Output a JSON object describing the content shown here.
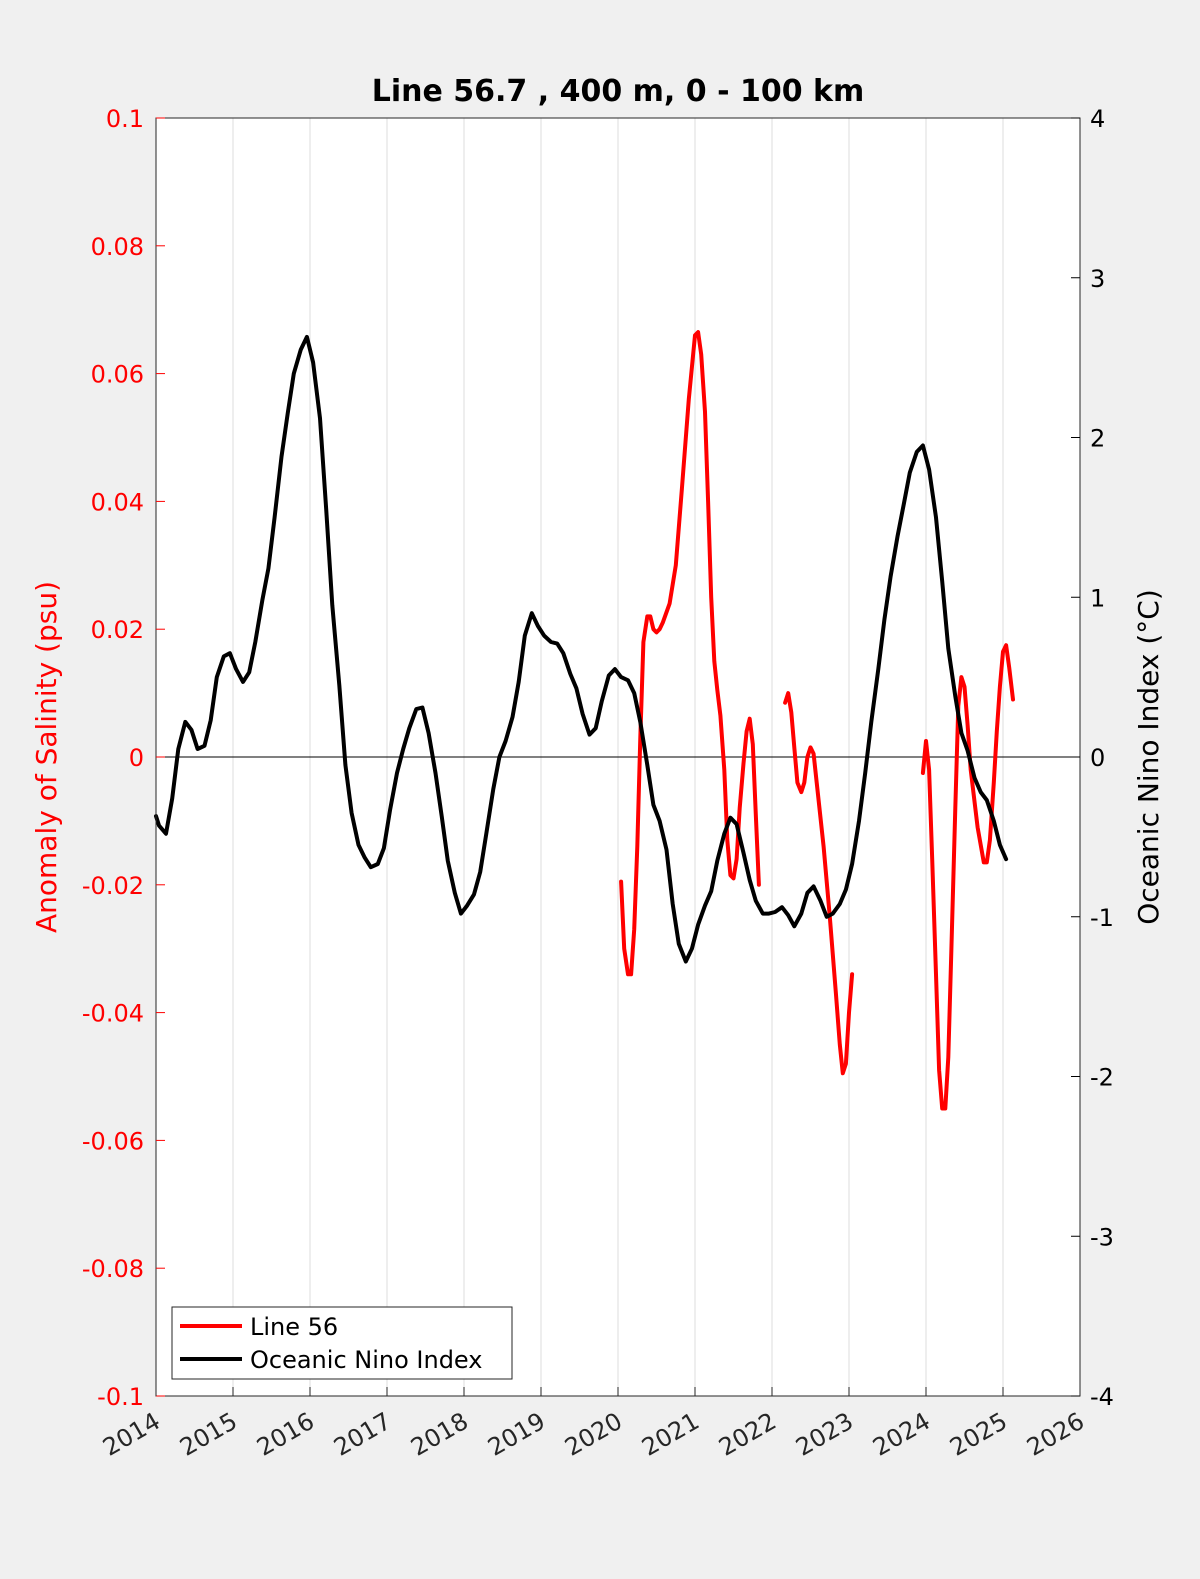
{
  "chart_data": {
    "type": "line",
    "title": "Line 56.7 , 400 m, 0 - 100 km",
    "xlabel": "",
    "ylabel_left": "Anomaly of Salinity (psu)",
    "ylabel_right": "Oceanic Nino Index (°C)",
    "xlim": [
      2014,
      2026
    ],
    "ylim_left": [
      -0.1,
      0.1
    ],
    "ylim_right": [
      -4,
      4
    ],
    "x_ticks": [
      "2014",
      "2015",
      "2016",
      "2017",
      "2018",
      "2019",
      "2020",
      "2021",
      "2022",
      "2023",
      "2024",
      "2025",
      "2026"
    ],
    "y_ticks_left": [
      "-0.1",
      "-0.08",
      "-0.06",
      "-0.04",
      "-0.02",
      "0",
      "0.02",
      "0.04",
      "0.06",
      "0.08",
      "0.1"
    ],
    "y_ticks_right": [
      "-4",
      "-3",
      "-2",
      "-1",
      "0",
      "1",
      "2",
      "3",
      "4"
    ],
    "grid": "vertical",
    "legend_position": "bottom-left",
    "colors": {
      "salinity": "#ff0000",
      "oni": "#000000",
      "left_axis": "#ff0000",
      "right_axis": "#000000"
    },
    "series": [
      {
        "name": "Line 56",
        "axis": "left",
        "segments": [
          [
            [
              2020.04,
              -0.0195
            ],
            [
              2020.08,
              -0.03
            ],
            [
              2020.13,
              -0.034
            ],
            [
              2020.17,
              -0.034
            ],
            [
              2020.21,
              -0.027
            ],
            [
              2020.25,
              -0.014
            ],
            [
              2020.29,
              0.003
            ],
            [
              2020.33,
              0.018
            ],
            [
              2020.38,
              0.022
            ],
            [
              2020.42,
              0.022
            ],
            [
              2020.46,
              0.02
            ],
            [
              2020.5,
              0.0195
            ],
            [
              2020.54,
              0.02
            ],
            [
              2020.58,
              0.021
            ],
            [
              2020.67,
              0.024
            ],
            [
              2020.75,
              0.03
            ],
            [
              2020.83,
              0.042
            ],
            [
              2020.92,
              0.056
            ],
            [
              2021.0,
              0.066
            ],
            [
              2021.04,
              0.0665
            ],
            [
              2021.08,
              0.063
            ],
            [
              2021.13,
              0.054
            ],
            [
              2021.17,
              0.04
            ],
            [
              2021.21,
              0.025
            ],
            [
              2021.25,
              0.015
            ],
            [
              2021.29,
              0.0105
            ],
            [
              2021.33,
              0.0065
            ],
            [
              2021.38,
              -0.002
            ],
            [
              2021.42,
              -0.013
            ],
            [
              2021.46,
              -0.0185
            ],
            [
              2021.5,
              -0.019
            ],
            [
              2021.54,
              -0.016
            ],
            [
              2021.58,
              -0.008
            ],
            [
              2021.63,
              -0.001
            ],
            [
              2021.67,
              0.004
            ],
            [
              2021.71,
              0.006
            ],
            [
              2021.75,
              0.002
            ],
            [
              2021.79,
              -0.009
            ],
            [
              2021.83,
              -0.02
            ]
          ],
          [
            [
              2022.17,
              0.0085
            ],
            [
              2022.21,
              0.01
            ],
            [
              2022.25,
              0.007
            ],
            [
              2022.29,
              0.0015
            ],
            [
              2022.33,
              -0.004
            ],
            [
              2022.38,
              -0.0055
            ],
            [
              2022.42,
              -0.004
            ],
            [
              2022.46,
              0.0
            ],
            [
              2022.5,
              0.0015
            ],
            [
              2022.54,
              0.0005
            ],
            [
              2022.58,
              -0.004
            ],
            [
              2022.67,
              -0.014
            ],
            [
              2022.75,
              -0.025
            ],
            [
              2022.83,
              -0.037
            ],
            [
              2022.88,
              -0.045
            ],
            [
              2022.92,
              -0.0495
            ],
            [
              2022.96,
              -0.048
            ],
            [
              2023.0,
              -0.04
            ],
            [
              2023.04,
              -0.034
            ]
          ],
          [
            [
              2023.96,
              -0.0025
            ],
            [
              2024.0,
              0.0025
            ],
            [
              2024.04,
              -0.002
            ],
            [
              2024.08,
              -0.016
            ],
            [
              2024.13,
              -0.034
            ],
            [
              2024.17,
              -0.049
            ],
            [
              2024.21,
              -0.055
            ],
            [
              2024.25,
              -0.055
            ],
            [
              2024.29,
              -0.047
            ],
            [
              2024.33,
              -0.03
            ],
            [
              2024.38,
              -0.008
            ],
            [
              2024.42,
              0.008
            ],
            [
              2024.46,
              0.0125
            ],
            [
              2024.5,
              0.011
            ],
            [
              2024.54,
              0.005
            ],
            [
              2024.58,
              -0.002
            ],
            [
              2024.67,
              -0.011
            ],
            [
              2024.75,
              -0.0165
            ],
            [
              2024.79,
              -0.0165
            ],
            [
              2024.83,
              -0.013
            ],
            [
              2024.88,
              -0.004
            ],
            [
              2024.92,
              0.004
            ],
            [
              2024.96,
              0.011
            ],
            [
              2025.0,
              0.0165
            ],
            [
              2025.04,
              0.0175
            ],
            [
              2025.08,
              0.014
            ],
            [
              2025.13,
              0.009
            ]
          ]
        ]
      },
      {
        "name": "Oceanic Nino Index",
        "axis": "right",
        "points": [
          [
            2014.0,
            -0.37
          ],
          [
            2014.04,
            -0.43
          ],
          [
            2014.13,
            -0.48
          ],
          [
            2014.21,
            -0.26
          ],
          [
            2014.29,
            0.05
          ],
          [
            2014.38,
            0.22
          ],
          [
            2014.46,
            0.17
          ],
          [
            2014.54,
            0.05
          ],
          [
            2014.63,
            0.07
          ],
          [
            2014.71,
            0.23
          ],
          [
            2014.79,
            0.5
          ],
          [
            2014.88,
            0.63
          ],
          [
            2014.96,
            0.65
          ],
          [
            2015.04,
            0.55
          ],
          [
            2015.13,
            0.47
          ],
          [
            2015.21,
            0.53
          ],
          [
            2015.29,
            0.72
          ],
          [
            2015.38,
            0.98
          ],
          [
            2015.46,
            1.18
          ],
          [
            2015.54,
            1.5
          ],
          [
            2015.63,
            1.88
          ],
          [
            2015.71,
            2.15
          ],
          [
            2015.79,
            2.4
          ],
          [
            2015.88,
            2.55
          ],
          [
            2015.96,
            2.63
          ],
          [
            2016.04,
            2.47
          ],
          [
            2016.13,
            2.12
          ],
          [
            2016.21,
            1.55
          ],
          [
            2016.29,
            0.95
          ],
          [
            2016.38,
            0.45
          ],
          [
            2016.46,
            -0.05
          ],
          [
            2016.54,
            -0.35
          ],
          [
            2016.63,
            -0.55
          ],
          [
            2016.71,
            -0.63
          ],
          [
            2016.79,
            -0.69
          ],
          [
            2016.88,
            -0.67
          ],
          [
            2016.96,
            -0.57
          ],
          [
            2017.04,
            -0.33
          ],
          [
            2017.13,
            -0.1
          ],
          [
            2017.21,
            0.05
          ],
          [
            2017.29,
            0.18
          ],
          [
            2017.38,
            0.3
          ],
          [
            2017.46,
            0.31
          ],
          [
            2017.54,
            0.15
          ],
          [
            2017.63,
            -0.1
          ],
          [
            2017.71,
            -0.37
          ],
          [
            2017.79,
            -0.65
          ],
          [
            2017.88,
            -0.85
          ],
          [
            2017.96,
            -0.98
          ],
          [
            2018.04,
            -0.93
          ],
          [
            2018.13,
            -0.86
          ],
          [
            2018.21,
            -0.72
          ],
          [
            2018.29,
            -0.48
          ],
          [
            2018.38,
            -0.2
          ],
          [
            2018.46,
            0.0
          ],
          [
            2018.54,
            0.1
          ],
          [
            2018.63,
            0.25
          ],
          [
            2018.71,
            0.47
          ],
          [
            2018.79,
            0.76
          ],
          [
            2018.88,
            0.9
          ],
          [
            2018.96,
            0.82
          ],
          [
            2019.04,
            0.76
          ],
          [
            2019.13,
            0.72
          ],
          [
            2019.21,
            0.71
          ],
          [
            2019.29,
            0.65
          ],
          [
            2019.38,
            0.52
          ],
          [
            2019.46,
            0.43
          ],
          [
            2019.54,
            0.27
          ],
          [
            2019.63,
            0.14
          ],
          [
            2019.71,
            0.18
          ],
          [
            2019.79,
            0.35
          ],
          [
            2019.88,
            0.51
          ],
          [
            2019.96,
            0.55
          ],
          [
            2020.04,
            0.5
          ],
          [
            2020.13,
            0.48
          ],
          [
            2020.21,
            0.4
          ],
          [
            2020.29,
            0.22
          ],
          [
            2020.38,
            -0.05
          ],
          [
            2020.46,
            -0.3
          ],
          [
            2020.54,
            -0.4
          ],
          [
            2020.63,
            -0.58
          ],
          [
            2020.71,
            -0.92
          ],
          [
            2020.79,
            -1.17
          ],
          [
            2020.88,
            -1.28
          ],
          [
            2020.96,
            -1.2
          ],
          [
            2021.04,
            -1.05
          ],
          [
            2021.13,
            -0.93
          ],
          [
            2021.21,
            -0.84
          ],
          [
            2021.29,
            -0.65
          ],
          [
            2021.38,
            -0.48
          ],
          [
            2021.46,
            -0.38
          ],
          [
            2021.54,
            -0.42
          ],
          [
            2021.63,
            -0.6
          ],
          [
            2021.71,
            -0.77
          ],
          [
            2021.79,
            -0.9
          ],
          [
            2021.88,
            -0.98
          ],
          [
            2021.96,
            -0.98
          ],
          [
            2022.04,
            -0.97
          ],
          [
            2022.13,
            -0.94
          ],
          [
            2022.21,
            -0.99
          ],
          [
            2022.29,
            -1.06
          ],
          [
            2022.38,
            -0.98
          ],
          [
            2022.46,
            -0.85
          ],
          [
            2022.54,
            -0.81
          ],
          [
            2022.63,
            -0.9
          ],
          [
            2022.71,
            -1.0
          ],
          [
            2022.79,
            -0.98
          ],
          [
            2022.88,
            -0.92
          ],
          [
            2022.96,
            -0.83
          ],
          [
            2023.04,
            -0.67
          ],
          [
            2023.13,
            -0.4
          ],
          [
            2023.21,
            -0.1
          ],
          [
            2023.29,
            0.22
          ],
          [
            2023.38,
            0.55
          ],
          [
            2023.46,
            0.86
          ],
          [
            2023.54,
            1.13
          ],
          [
            2023.63,
            1.38
          ],
          [
            2023.71,
            1.58
          ],
          [
            2023.79,
            1.78
          ],
          [
            2023.88,
            1.91
          ],
          [
            2023.96,
            1.95
          ],
          [
            2024.04,
            1.8
          ],
          [
            2024.13,
            1.5
          ],
          [
            2024.21,
            1.1
          ],
          [
            2024.29,
            0.68
          ],
          [
            2024.38,
            0.38
          ],
          [
            2024.46,
            0.15
          ],
          [
            2024.54,
            0.04
          ],
          [
            2024.63,
            -0.13
          ],
          [
            2024.71,
            -0.22
          ],
          [
            2024.79,
            -0.27
          ],
          [
            2024.88,
            -0.4
          ],
          [
            2024.96,
            -0.55
          ],
          [
            2025.04,
            -0.64
          ]
        ]
      }
    ]
  },
  "legend": {
    "items": [
      {
        "label": "Line 56",
        "color": "#ff0000"
      },
      {
        "label": "Oceanic Nino Index",
        "color": "#000000"
      }
    ]
  }
}
